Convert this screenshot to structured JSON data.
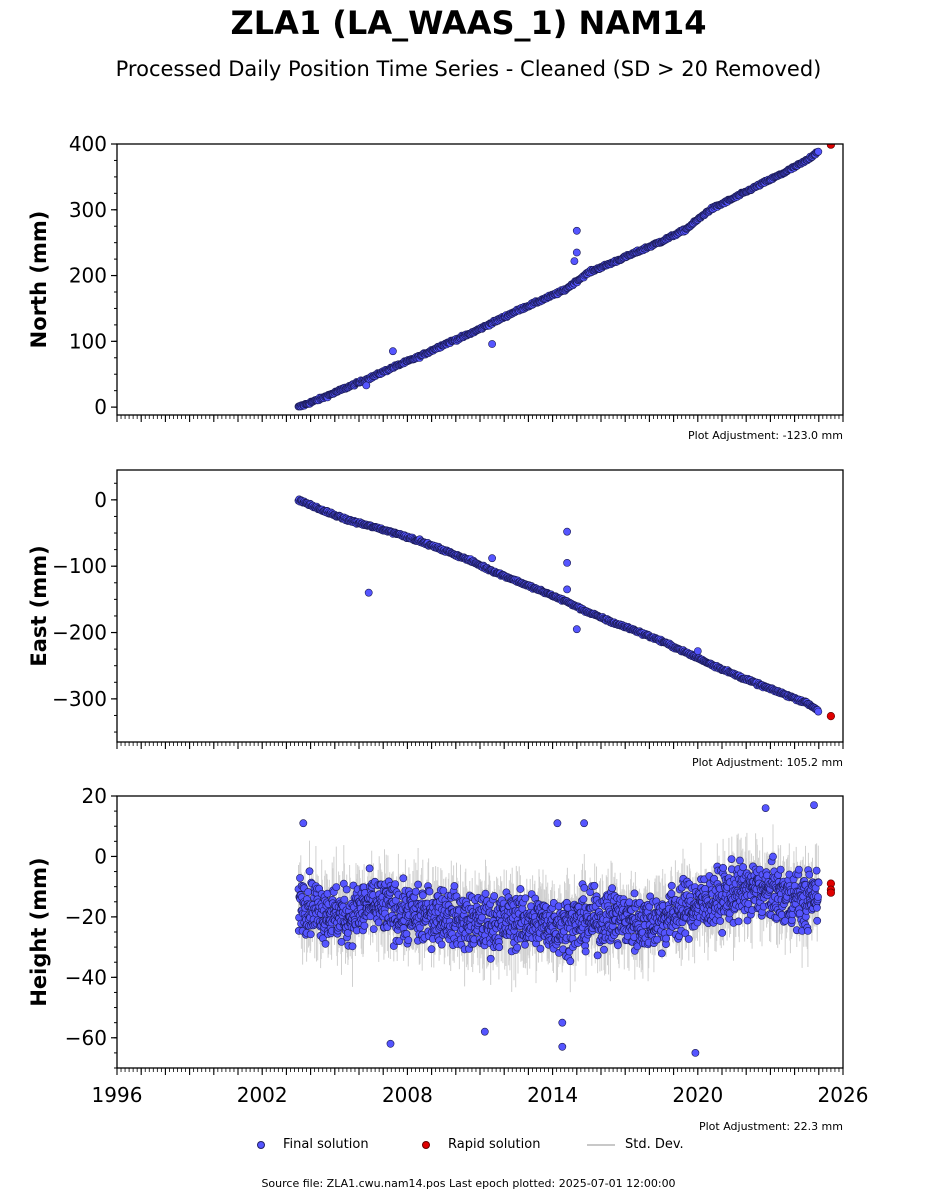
{
  "title": "ZLA1 (LA_WAAS_1) NAM14",
  "subtitle": "Processed Daily Position Time Series - Cleaned (SD > 20 Removed)",
  "legend": {
    "final": "Final solution",
    "rapid": "Rapid solution",
    "std": "Std. Dev."
  },
  "source_text": "Source file: ZLA1.cwu.nam14.pos  Last epoch plotted: 2025-07-01 12:00:00",
  "colors": {
    "final": "#5555ff",
    "rapid": "#e00000",
    "std": "#c8c8c8"
  },
  "chart_data": [
    {
      "type": "scatter",
      "ylabel": "North (mm)",
      "adjustment": "Plot Adjustment: -123.0 mm",
      "xlim": [
        1996,
        2026
      ],
      "ylim": [
        -12,
        400
      ],
      "yticks": [
        0,
        100,
        200,
        300,
        400
      ],
      "series": [
        {
          "name": "Final solution",
          "x": [
            2003.5,
            2004.5,
            2005.5,
            2006.5,
            2007.5,
            2008.5,
            2009.5,
            2010.5,
            2011.5,
            2012.5,
            2013.5,
            2014.5,
            2015.5,
            2016.5,
            2017.5,
            2018.5,
            2019.5,
            2020.5,
            2021.5,
            2022.5,
            2023.5,
            2024.5,
            2025.0
          ],
          "y": [
            0,
            14,
            30,
            45,
            62,
            77,
            95,
            110,
            128,
            146,
            162,
            178,
            205,
            220,
            236,
            252,
            270,
            300,
            318,
            337,
            355,
            375,
            390
          ]
        },
        {
          "name": "Rapid solution",
          "x": [
            2025.5
          ],
          "y": [
            399
          ]
        }
      ],
      "outliers": {
        "x": [
          2006.3,
          2007.4,
          2011.5,
          2014.9,
          2015.0,
          2015.0
        ],
        "y": [
          33,
          85,
          96,
          222,
          235,
          268
        ]
      }
    },
    {
      "type": "scatter",
      "ylabel": "East (mm)",
      "adjustment": "Plot Adjustment: 105.2 mm",
      "xlim": [
        1996,
        2026
      ],
      "ylim": [
        -365,
        45
      ],
      "yticks": [
        0,
        -100,
        -200,
        -300
      ],
      "series": [
        {
          "name": "Final solution",
          "x": [
            2003.5,
            2004.5,
            2005.5,
            2006.5,
            2007.5,
            2008.5,
            2009.5,
            2010.5,
            2011.5,
            2012.5,
            2013.5,
            2014.5,
            2015.5,
            2016.5,
            2017.5,
            2018.5,
            2019.5,
            2020.5,
            2021.5,
            2022.5,
            2023.5,
            2024.5,
            2025.0
          ],
          "y": [
            0,
            -16,
            -30,
            -40,
            -50,
            -62,
            -76,
            -90,
            -107,
            -122,
            -137,
            -152,
            -170,
            -185,
            -198,
            -213,
            -230,
            -247,
            -263,
            -278,
            -292,
            -306,
            -318
          ]
        },
        {
          "name": "Rapid solution",
          "x": [
            2025.5
          ],
          "y": [
            -326
          ]
        }
      ],
      "outliers": {
        "x": [
          2006.4,
          2011.5,
          2014.6,
          2014.6,
          2014.6,
          2015.0,
          2020.0
        ],
        "y": [
          -140,
          -88,
          -48,
          -95,
          -135,
          -195,
          -228
        ]
      }
    },
    {
      "type": "scatter",
      "ylabel": "Height (mm)",
      "adjustment": "Plot Adjustment: 22.3 mm",
      "xlim": [
        1996,
        2026
      ],
      "ylim": [
        -70,
        20
      ],
      "yticks": [
        20,
        0,
        -20,
        -40,
        -60
      ],
      "xticks": [
        1996,
        2002,
        2008,
        2014,
        2020,
        2026
      ],
      "series": [
        {
          "name": "Final solution",
          "x": [
            2003.5,
            2004.5,
            2005.5,
            2006.5,
            2007.5,
            2008.5,
            2009.5,
            2010.5,
            2011.5,
            2012.5,
            2013.5,
            2014.5,
            2015.5,
            2016.5,
            2017.5,
            2018.5,
            2019.5,
            2020.5,
            2021.5,
            2022.5,
            2023.5,
            2024.5,
            2025.0
          ],
          "y": [
            -14,
            -18,
            -20,
            -16,
            -18,
            -20,
            -19,
            -22,
            -22,
            -21,
            -22,
            -23,
            -21,
            -20,
            -22,
            -21,
            -17,
            -15,
            -12,
            -11,
            -13,
            -15,
            -12
          ]
        },
        {
          "name": "Rapid solution",
          "x": [
            2025.5,
            2025.5,
            2025.5
          ],
          "y": [
            -9,
            -11,
            -12
          ]
        }
      ],
      "outliers": {
        "x": [
          2003.7,
          2007.3,
          2011.2,
          2014.4,
          2014.4,
          2014.2,
          2015.3,
          2019.9,
          2022.8,
          2024.8
        ],
        "y": [
          11,
          -62,
          -58,
          -63,
          -55,
          11,
          11,
          -65,
          16,
          17
        ]
      }
    }
  ]
}
